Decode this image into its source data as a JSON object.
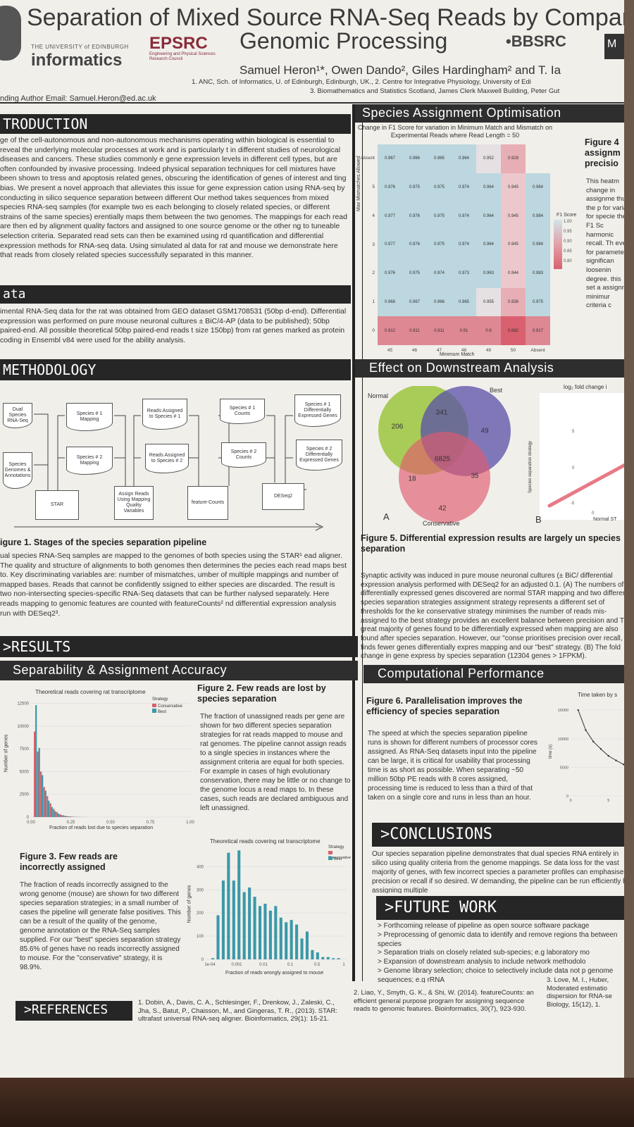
{
  "header": {
    "title_line1": "Separation of Mixed Source RNA-Seq Reads by Comparati",
    "title_line2": "Genomic Processing",
    "authors": "Samuel Heron¹*, Owen Dando², Giles Hardingham² and T. Ia",
    "affiliation1": "1. ANC, Sch. of Informatics, U. of Edinburgh, Edinburgh, UK., 2. Centre for Integrative Physiology, University of Edi",
    "affiliation2": "3. Biomathematics and Statistics Scotland, James Clerk Maxwell Building, Peter Gut",
    "email": "nding Author Email: Samuel.Heron@ed.ac.uk"
  },
  "logos": {
    "university_small": "THE UNIVERSITY of EDINBURGH",
    "informatics": "informatics",
    "epsrc": "EPSRC",
    "epsrc_sub": "Engineering and Physical Sciences Research Council",
    "bbsrc": "•BBSRC",
    "dark_badge": "M"
  },
  "introduction": {
    "heading": "TRODUCTION",
    "text": "ge of the cell-autonomous and non-autonomous mechanisms operating within biological is essential to reveal the underlying molecular processes at work and is particularly t in different studies of neurological diseases and cancers. These studies commonly e gene expression levels in different cell types, but are often confounded by invasive processing. Indeed physical separation techniques for cell mixtures have been shown to tress and apoptosis related genes, obscuring the identification of genes of interest and ting bias. We present a novel approach that alleviates this issue for gene expression cation using RNA-seq by conducting in silico sequence separation between different Our method takes sequences from mixed species RNA-seq samples (for example two es each belonging to closely related species, or different strains of the same species) erentially maps them between the two genomes. The mappings for each read are then ed by alignment quality factors and assigned to one source genome or the other ng to tuneable selection criteria. Separated read sets can then be examined using rd quantification and differential expression methods for RNA-seq data. Using simulated al data for rat and mouse we demonstrate here that reads from closely related species successfully separated in this manner."
  },
  "data_section": {
    "heading": "ata",
    "text": "imental RNA-Seq data for the rat was obtained from GEO dataset GSM1708531 (50bp d-end). Differential expression was performed on pure mouse neuronal cultures ± BiC/4-AP (data to be published); 50bp paired-end. All possible theoretical 50bp paired-end reads t size 150bp) from rat genes marked as protein coding in Ensembl v84 were used for the ability analysis."
  },
  "methodology": {
    "heading": "METHODOLOGY",
    "flow_boxes": [
      "Dual Species RNA-Seq",
      "Species Genomes & Annotations",
      "STAR",
      "Species # 1 Mapping",
      "Species # 2 Mapping",
      "Assign Reads Using Mapping Quality Variables",
      "Reads Assigned to Species # 1",
      "Reads Assigned to Species # 2",
      "feature-Counts",
      "Species # 1 Counts",
      "Species # 2 Counts",
      "DESeq2",
      "Species # 1 Differentially Expressed Genes",
      "Species # 2 Differentially Expressed Genes"
    ],
    "figure_caption": "igure 1. Stages of the species separation pipeline",
    "text": "ual species RNA-Seq samples are mapped to the genomes of both species using the STAR¹ ead aligner. The quality and structure of alignments to both genomes then determines the pecies each read maps best to. Key discriminating variables are: number of mismatches, umber of multiple mappings and number of mapped bases. Reads that cannot be confidently ssigned to either species are discarded. The result is two non-intersecting species-specific RNA-Seq datasets that can be further nalysed separately. Here reads mapping to genomic features are counted with featureCounts² nd differential expression analysis run with DESeq2³."
  },
  "results": {
    "heading": ">RESULTS",
    "subheading": "Separability & Assignment Accuracy",
    "fig2_caption": "Figure 2. Few reads are lost by species separation",
    "fig2_text": "The fraction of unassigned reads per gene are shown for two different species separation strategies for rat reads mapped to mouse and rat genomes. The pipeline cannot assign reads to a single species in instances where the assignment criteria are equal for both species. For example in cases of high evolutionary conservation, there may be little or no change to the genome locus a read maps to. In these cases, such reads are declared ambiguous and left unassigned.",
    "fig3_caption": "Figure 3. Few reads are incorrectly assigned",
    "fig3_text": "The fraction of reads incorrectly assigned to the wrong genome (mouse) are shown for two different species separation strategies; in a small number of cases the pipeline will generate false positives. This can be a result of the quality of the genome, genome annotation or the RNA-Seq samples supplied. For our \"best\" species separation strategy 85.6% of genes have no reads incorrectly assigned to mouse. For the \"conservative\" strategy, it is 98.9%."
  },
  "species_opt": {
    "heading": "Species Assignment Optimisation",
    "fig4_caption": "Figure 4 assignm precisio",
    "fig4_text": "This heatm change in assignme thus the p for variat for specie the F1 Sc harmonic recall. Th even for paramete significan loosenin degree. this set a assignm minimur criteria c"
  },
  "downstream": {
    "heading": "Effect on Downstream Analysis",
    "venn_labels": {
      "normal": "Normal",
      "best": "Best",
      "conservative": "Conservative",
      "panel_a": "A",
      "panel_b": "B"
    },
    "venn_numbers": {
      "normal_only": "206",
      "best_only": "49",
      "normal_best": "341",
      "all": "6825",
      "normal_cons": "18",
      "best_cons": "35",
      "cons_only": "42"
    },
    "scatter_title": "log₂ fold change i",
    "scatter_ylabel": "Species separation strategy",
    "scatter_xlabel": "Normal ST",
    "scatter_ticks": [
      "5",
      "0",
      "-5",
      "0"
    ],
    "fig5_caption": "Figure 5. Differential expression results are largely un species separation",
    "fig5_text": "Synaptic activity was induced in pure mouse neuronal cultures (± BiC/ differential expression analysis performed with DESeq2 for an adjusted 0.1. (A) The numbers of differentially expressed genes discovered are normal STAR mapping and two different species separation strategies assignment strategy represents a different set of thresholds for the ke conservative strategy minimises the number of reads mis-assigned to the best strategy provides an excellent balance between precision and The great majority of genes found to be differentially expressed when mapping are also found after species separation. However, our \"conse prioritises precision over recall, finds fewer genes differentially expres mapping and our \"best\" strategy. (B) The fold change in gene express by species separation (12304 genes > 1FPKM)."
  },
  "computational": {
    "heading": "Computational Performance",
    "fig6_caption": "Figure 6. Parallelisation improves the efficiency of species separation",
    "fig6_text": "The speed at which the species separation pipeline runs is shown for different numbers of processor cores assigned. As RNA-Seq datasets input into the pipeline can be large, it is critical for usability that processing time is as short as possible. When separating ~50 million 50bp PE reads with 8 cores assigned, processing time is reduced to less than a third of that taken on a single core and runs in less than an hour."
  },
  "conclusions": {
    "heading": ">CONCLUSIONS",
    "text": "Our species separation pipeline demonstrates that dual species RNA entirely in silico using quality criteria from the genome mappings. Se data loss for the vast majority of genes, with few incorrect species a parameter profiles can emphasise precision or recall if so desired. W demanding, the pipeline can be run efficiently by assigning multiple"
  },
  "future": {
    "heading": ">FUTURE WORK",
    "items": [
      "> Forthcoming release of pipeline as open source software package",
      "> Preprocessing of genomic data to identify and remove regions tha between species",
      "> Separation trials on closely related sub-species; e.g laboratory mo",
      "> Expansion of downstream analysis to include network methodolo",
      "> Genome library selection; choice to selectively include data not p genome sequences; e.g rRNA"
    ]
  },
  "references": {
    "heading": ">REFERENCES",
    "ref1": "1. Dobin, A., Davis, C. A., Schlesinger, F., Drenkow, J., Zaleski, C., Jha, S., Batut, P., Chaisson, M., and Gingeras, T. R., (2013). STAR: ultrafast universal RNA-seq aligner. Bioinformatics, 29(1): 15-21.",
    "ref2": "2. Liao, Y., Smyth, G. K., & Shi, W. (2014). featureCounts: an efficient general purpose program for assigning sequence reads to genomic features. Bioinformatics, 30(7), 923-930.",
    "ref3": "3. Love, M. I., Huber, Moderated estimatio dispersion for RNA-se Biology, 15(12), 1."
  },
  "chart_data": [
    {
      "type": "bar",
      "title": "Theoretical reads covering rat transcriptome",
      "xlabel": "Fraction of reads lost due to species separation",
      "ylabel": "Number of genes",
      "x_ticks": [
        "0.00",
        "0.25",
        "0.50",
        "0.75",
        "1.00"
      ],
      "y_ticks": [
        "0",
        "2500",
        "5000",
        "7500",
        "10000",
        "12500"
      ],
      "xlim": [
        0,
        1
      ],
      "ylim": [
        0,
        13000
      ],
      "legend_title": "Strategy",
      "legend_position": "top-right",
      "series": [
        {
          "name": "Conservative",
          "color": "#d9606e",
          "values": [
            9400,
            7200,
            5000,
            3300,
            2300,
            1500,
            900,
            550,
            320,
            200,
            120,
            80,
            50,
            30,
            20,
            12,
            8
          ]
        },
        {
          "name": "Best",
          "color": "#3a99a8",
          "values": [
            12300,
            7600,
            4600,
            2900,
            1800,
            1100,
            650,
            380,
            220,
            130,
            80,
            50,
            30,
            18,
            12,
            8,
            5
          ]
        }
      ]
    },
    {
      "type": "bar",
      "title": "Theoretical reads covering rat transcriptome",
      "xlabel": "Fraction of reads wrongly assigned to mouse",
      "ylabel": "Number of genes",
      "x_ticks": [
        "1e-04",
        "0.001",
        "0.01",
        "0.1",
        "0.5",
        "1"
      ],
      "y_ticks": [
        "0",
        "100",
        "200",
        "300",
        "400"
      ],
      "ylim": [
        0,
        480
      ],
      "x_scale": "log",
      "legend_title": "Strategy",
      "legend_position": "top-right",
      "series": [
        {
          "name": "Conservative",
          "color": "#d9606e",
          "values": [
            2,
            8,
            10,
            12,
            14,
            15,
            14,
            12,
            10,
            8,
            6,
            4,
            3,
            2,
            1,
            1,
            1,
            0,
            0,
            0,
            0,
            0,
            0,
            0,
            0
          ]
        },
        {
          "name": "Best",
          "color": "#3a99a8",
          "values": [
            5,
            190,
            340,
            460,
            340,
            470,
            290,
            310,
            270,
            230,
            240,
            210,
            230,
            180,
            160,
            170,
            150,
            90,
            120,
            40,
            30,
            10,
            10,
            5,
            5
          ]
        }
      ]
    },
    {
      "type": "heatmap",
      "title": "Change in F1 Score for variation in Minimum Match and Mismatch on Experimental Reads where Read Length = 50",
      "xlabel": "Minimum Match",
      "ylabel": "Max Mismatches Allowed",
      "legend_title": "F1 Score",
      "legend_ticks": [
        "1.00",
        "0.95",
        "0.90",
        "0.85",
        "0.80"
      ],
      "x": [
        "45",
        "46",
        "47",
        "48",
        "49",
        "50",
        "Absent"
      ],
      "y": [
        "Absent",
        "5",
        "4",
        "3",
        "2",
        "1",
        "0"
      ],
      "values": [
        [
          0.967,
          0.966,
          0.965,
          0.964,
          0.952,
          0.929,
          null
        ],
        [
          0.976,
          0.975,
          0.975,
          0.974,
          0.964,
          0.945,
          0.984
        ],
        [
          0.977,
          0.976,
          0.975,
          0.974,
          0.964,
          0.945,
          0.984
        ],
        [
          0.977,
          0.976,
          0.975,
          0.974,
          0.964,
          0.945,
          0.984
        ],
        [
          0.976,
          0.975,
          0.974,
          0.973,
          0.963,
          0.944,
          0.983
        ],
        [
          0.968,
          0.967,
          0.966,
          0.965,
          0.955,
          0.936,
          0.975
        ],
        [
          0.912,
          0.911,
          0.911,
          0.91,
          0.9,
          0.882,
          0.917
        ]
      ]
    },
    {
      "type": "line",
      "title": "Time taken by s",
      "ylabel": "time (s)",
      "y_ticks": [
        "0",
        "5000",
        "10000",
        "15000"
      ],
      "x_ticks": [
        "0",
        "5"
      ],
      "x": [
        1,
        2,
        3,
        4,
        5,
        6,
        7,
        8
      ],
      "values": [
        15000,
        11500,
        9500,
        8200,
        7000,
        6200,
        5500,
        4900
      ]
    }
  ]
}
